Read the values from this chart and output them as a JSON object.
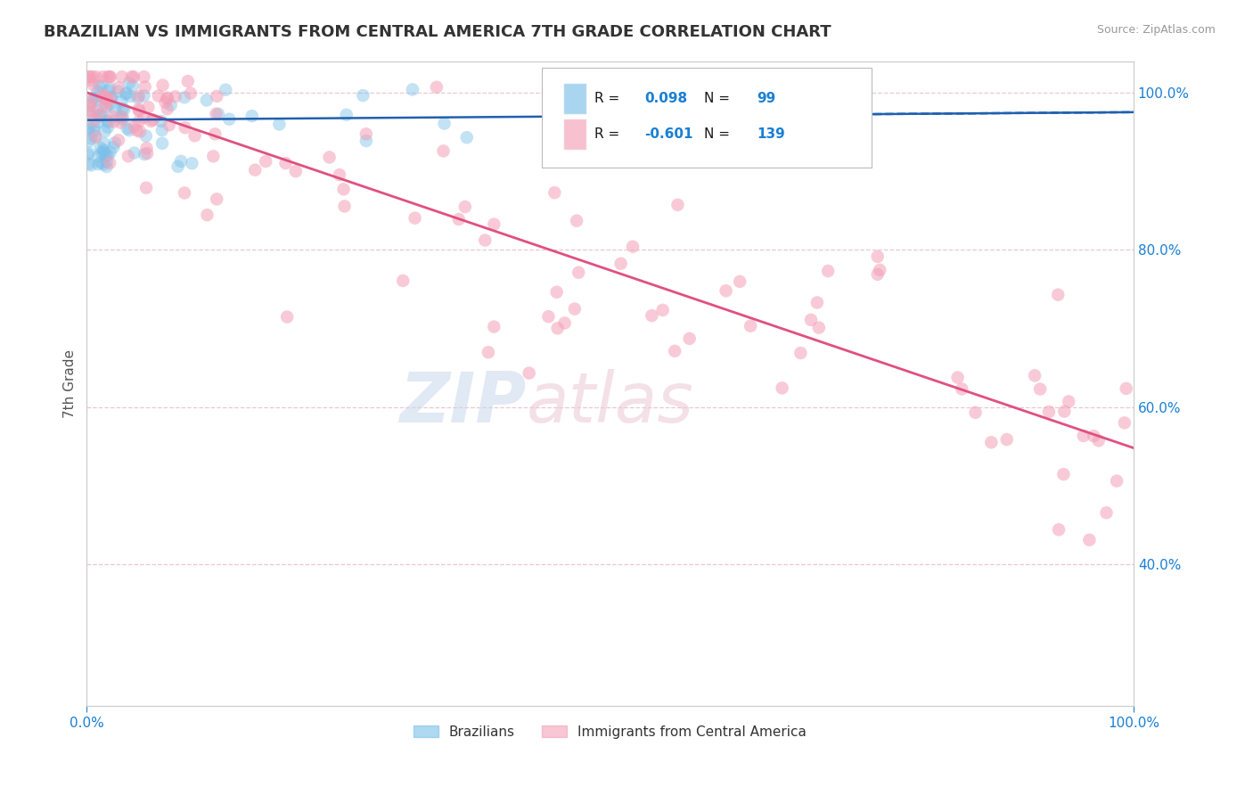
{
  "title": "BRAZILIAN VS IMMIGRANTS FROM CENTRAL AMERICA 7TH GRADE CORRELATION CHART",
  "source_text": "Source: ZipAtlas.com",
  "ylabel": "7th Grade",
  "xlim": [
    0.0,
    1.0
  ],
  "ylim": [
    0.22,
    1.04
  ],
  "xtick_labels": [
    "0.0%",
    "100.0%"
  ],
  "ytick_labels": [
    "100.0%",
    "80.0%",
    "60.0%",
    "40.0%"
  ],
  "ytick_positions": [
    1.0,
    0.8,
    0.6,
    0.4
  ],
  "blue_R": 0.098,
  "blue_N": 99,
  "pink_R": -0.601,
  "pink_N": 139,
  "blue_color": "#7bbfe8",
  "pink_color": "#f4a0b8",
  "blue_line_color": "#2060b0",
  "pink_line_color": "#e05080",
  "legend_label_blue": "Brazilians",
  "legend_label_pink": "Immigrants from Central America",
  "background_color": "#ffffff",
  "grid_color": "#e8c8d0",
  "title_color": "#333333",
  "blue_trend_y0": 0.965,
  "blue_trend_y1": 0.975,
  "pink_trend_y0": 1.0,
  "pink_trend_y1": 0.548
}
